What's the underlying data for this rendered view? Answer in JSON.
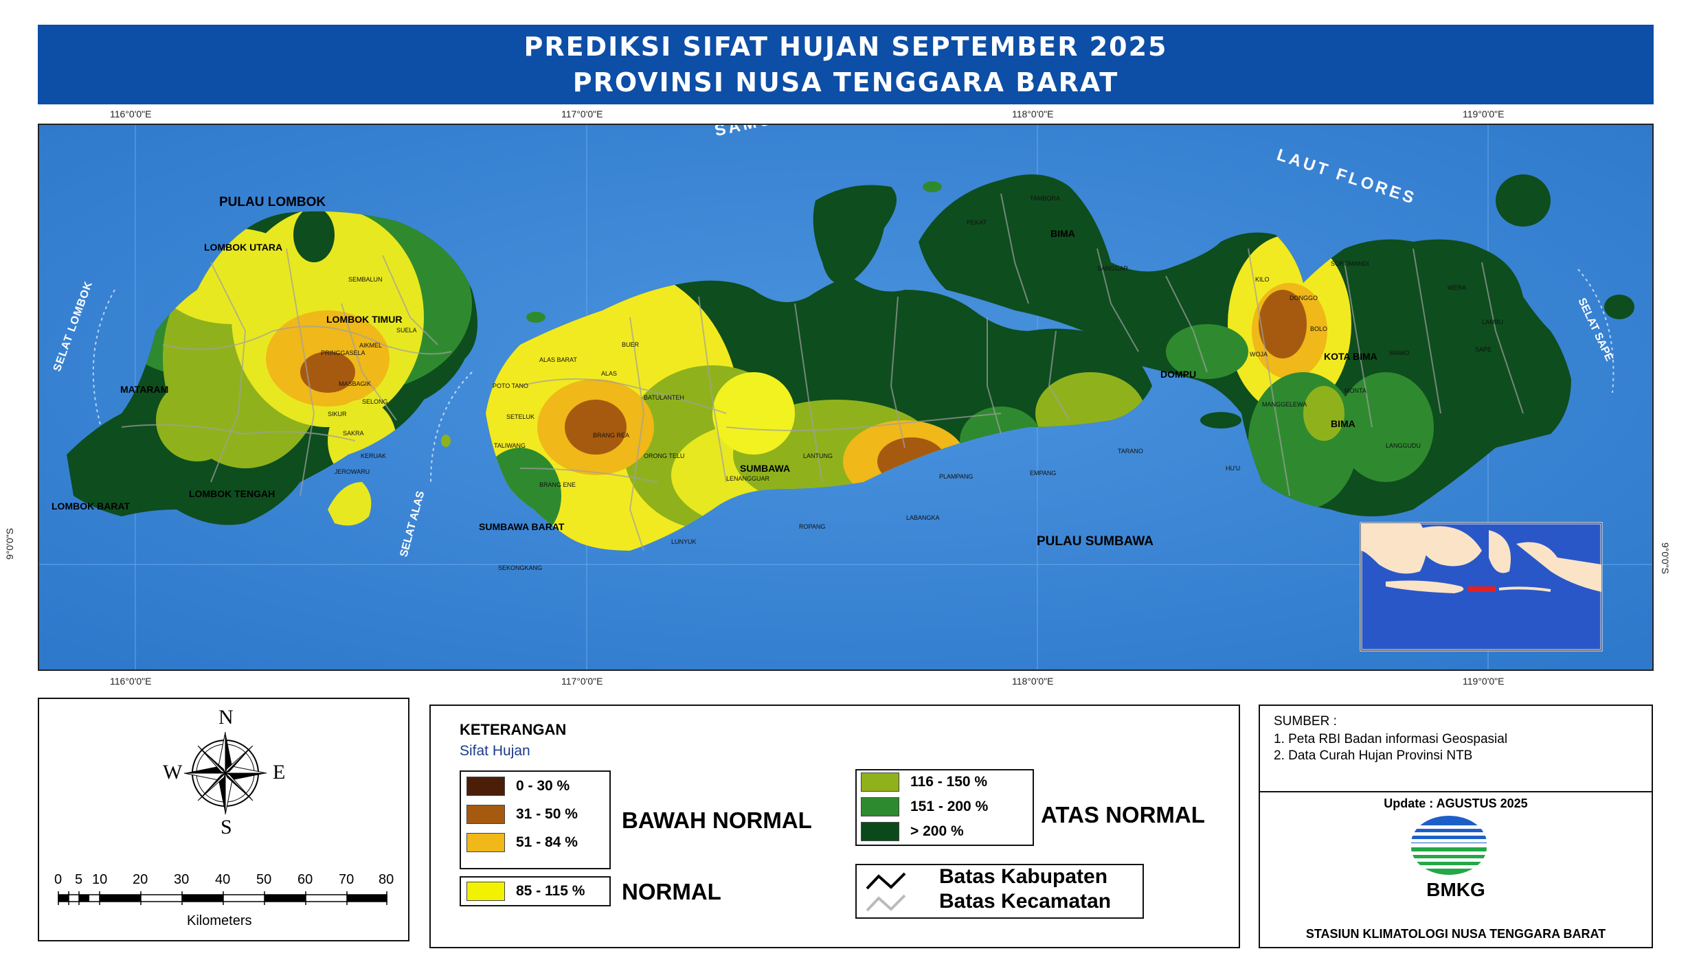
{
  "title": {
    "line1": "PREDIKSI SIFAT HUJAN SEPTEMBER 2025",
    "line2": "PROVINSI NUSA TENGGARA BARAT"
  },
  "map": {
    "grid": {
      "longitudes": [
        "116°0'0\"E",
        "117°0'0\"E",
        "118°0'0\"E",
        "119°0'0\"E"
      ],
      "latitude": "9°0'0\"S"
    },
    "sea_labels": {
      "laut_flores": "LAUT FLORES",
      "samudera_hindia": "SAMUDERA HINDIA",
      "selat_lombok": "SELAT LOMBOK",
      "selat_alas": "SELAT ALAS",
      "selat_sape": "SELAT SAPE"
    },
    "island_labels": {
      "pulau_lombok": "PULAU LOMBOK",
      "pulau_sumbawa": "PULAU SUMBAWA"
    },
    "regency_labels": [
      "LOMBOK UTARA",
      "LOMBOK TIMUR",
      "MATARAM",
      "LOMBOK BARAT",
      "LOMBOK TENGAH",
      "SUMBAWA BARAT",
      "SUMBAWA",
      "DOMPU",
      "BIMA",
      "BIMA",
      "KOTA BIMA"
    ],
    "district_labels": [
      "BRANG REA",
      "ALAS",
      "ALAS BARAT",
      "BUER",
      "BATULANTEH",
      "ORONG TELU",
      "LUNYUK",
      "ROPANG",
      "LABANGKA",
      "EMPANG",
      "TARANO",
      "PLAMPANG",
      "LANTUNG",
      "KILO",
      "WOJA",
      "POTO TANO",
      "SETELUK",
      "TALIWANG",
      "BRANG ENE",
      "SEKONGKANG",
      "SANGGAR",
      "TAMBORA",
      "HU'U",
      "LENANGGUAR",
      "SUELA",
      "SEMBALUN",
      "PRINGGASELA",
      "JEROWARU",
      "SAKRA",
      "AIKMEL",
      "MASBAGIK",
      "KERUAK",
      "SIKUR",
      "SELONG",
      "SAPE",
      "WERA",
      "MONTA",
      "LAMBU",
      "BOLO",
      "DONGGO",
      "SOROMANDI",
      "WAWO",
      "LANGGUDU",
      "PEKAT",
      "MANGGELEWA"
    ],
    "inset": "Indonesia overview map",
    "rainfall_classes": [
      "0-30",
      "31-50",
      "51-84",
      "85-115",
      "116-150",
      "151-200",
      ">200"
    ],
    "colors": {
      "sea": "#3d86d6",
      "class_0_30": "#4b1e08",
      "class_31_50": "#a65a10",
      "class_51_84": "#f0b818",
      "class_85_115": "#f0f020",
      "class_116_150": "#90b820",
      "class_151_200": "#308a30",
      "class_gt_200": "#0c4a1a"
    }
  },
  "compass": {
    "n": "N",
    "s": "S",
    "e": "E",
    "w": "W"
  },
  "scale": {
    "ticks": [
      "0",
      "5",
      "10",
      "20",
      "30",
      "40",
      "50",
      "60",
      "70",
      "80"
    ],
    "unit": "Kilometers"
  },
  "legend": {
    "title": "KETERANGAN",
    "subtitle": "Sifat Hujan",
    "below_normal": [
      {
        "label": "0 - 30 %",
        "color": "#4b1e08"
      },
      {
        "label": "31 - 50 %",
        "color": "#a65a10"
      },
      {
        "label": "51 - 84 %",
        "color": "#f0b818"
      }
    ],
    "below_normal_label": "BAWAH NORMAL",
    "normal": {
      "label": "85 - 115 %",
      "color": "#f2f200"
    },
    "normal_label": "NORMAL",
    "above_normal": [
      {
        "label": "116 - 150 %",
        "color": "#8fb21c"
      },
      {
        "label": "151 - 200 %",
        "color": "#2e8a2e"
      },
      {
        "label": "> 200 %",
        "color": "#0a4a1a"
      }
    ],
    "above_normal_label": "ATAS NORMAL",
    "boundaries": {
      "kabupaten": "Batas Kabupaten",
      "kecamatan": "Batas Kecamatan"
    }
  },
  "source": {
    "title": "SUMBER :",
    "items": [
      "1. Peta RBI Badan informasi Geospasial",
      "2. Data Curah Hujan Provinsi NTB"
    ],
    "update": "Update : AGUSTUS 2025",
    "logo_text": "BMKG",
    "station": "STASIUN KLIMATOLOGI NUSA TENGGARA BARAT"
  }
}
